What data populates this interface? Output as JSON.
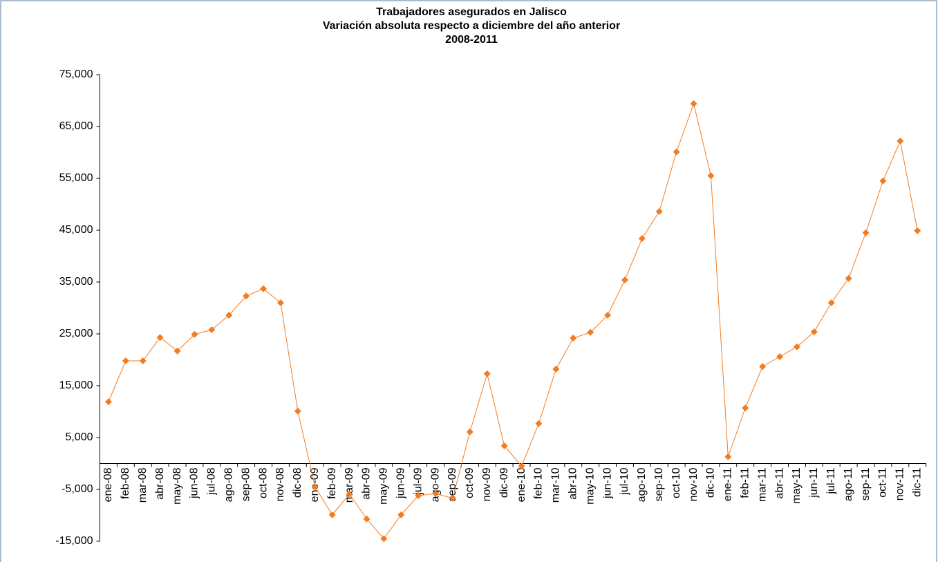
{
  "chart_data": {
    "type": "line",
    "title": [
      "Trabajadores asegurados en Jalisco",
      "Variación absoluta respecto a diciembre del año anterior",
      "2008-2011"
    ],
    "categories": [
      "ene-08",
      "feb-08",
      "mar-08",
      "abr-08",
      "may-08",
      "jun-08",
      "jul-08",
      "ago-08",
      "sep-08",
      "oct-08",
      "nov-08",
      "dic-08",
      "ene-09",
      "feb-09",
      "mar-09",
      "abr-09",
      "may-09",
      "jun-09",
      "jul-09",
      "ago-09",
      "sep-09",
      "oct-09",
      "nov-09",
      "dic-09",
      "ene-10",
      "feb-10",
      "mar-10",
      "abr-10",
      "may-10",
      "jun-10",
      "jul-10",
      "ago-10",
      "sep-10",
      "oct-10",
      "nov-10",
      "dic-10",
      "ene-11",
      "feb-11",
      "mar-11",
      "abr-11",
      "may-11",
      "jun-11",
      "jul-11",
      "ago-11",
      "sep-11",
      "oct-11",
      "nov-11",
      "dic-11"
    ],
    "series": [
      {
        "color": "#f47c20",
        "values": [
          11900,
          19800,
          19800,
          24300,
          21700,
          24900,
          25800,
          28600,
          32300,
          33700,
          31000,
          10100,
          -4500,
          -9900,
          -5900,
          -10700,
          -14500,
          -9900,
          -6200,
          -5800,
          -6700,
          6100,
          17300,
          3400,
          -500,
          7700,
          18200,
          24200,
          25300,
          28600,
          35400,
          43400,
          48600,
          60100,
          69400,
          55500,
          1300,
          10700,
          18700,
          20600,
          22500,
          25400,
          31000,
          35700,
          44500,
          54500,
          62200,
          44900
        ]
      }
    ],
    "ylim": [
      -15000,
      75000
    ],
    "yticks": [
      {
        "value": -15000,
        "label": "-15,000"
      },
      {
        "value": -5000,
        "label": "-5,000"
      },
      {
        "value": 5000,
        "label": "5,000"
      },
      {
        "value": 15000,
        "label": "15,000"
      },
      {
        "value": 25000,
        "label": "25,000"
      },
      {
        "value": 35000,
        "label": "35,000"
      },
      {
        "value": 45000,
        "label": "45,000"
      },
      {
        "value": 55000,
        "label": "55,000"
      },
      {
        "value": 65000,
        "label": "65,000"
      },
      {
        "value": 75000,
        "label": "75,000"
      }
    ],
    "grid": false
  }
}
